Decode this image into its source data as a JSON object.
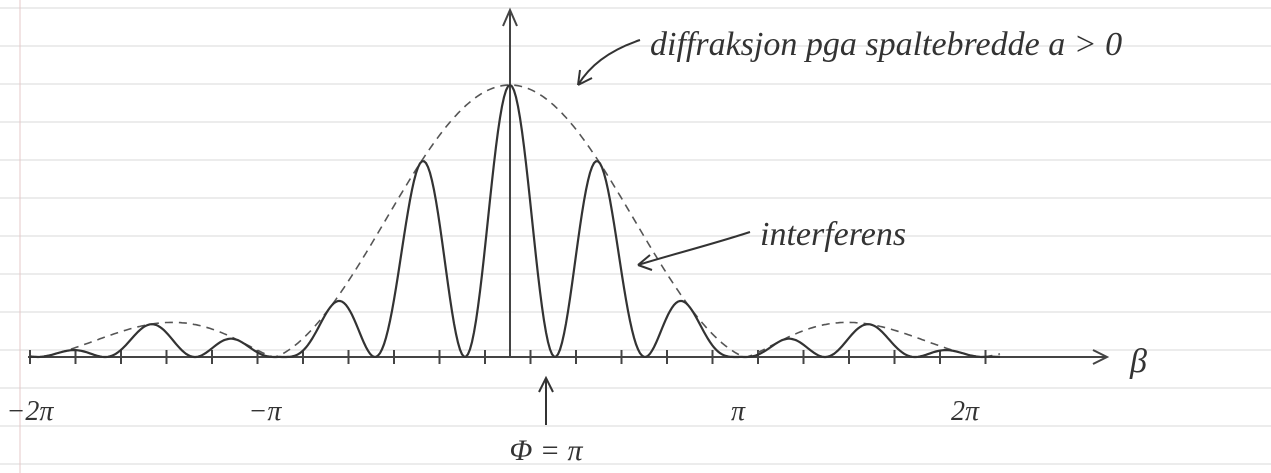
{
  "annotations": {
    "diffraction": "diffraksjon pga spaltebredde a > 0",
    "interference": "interferens",
    "phi": "Φ = π"
  },
  "axis": {
    "label": "β",
    "ticks": [
      "−2π",
      "−π",
      "π",
      "2π"
    ]
  }
}
